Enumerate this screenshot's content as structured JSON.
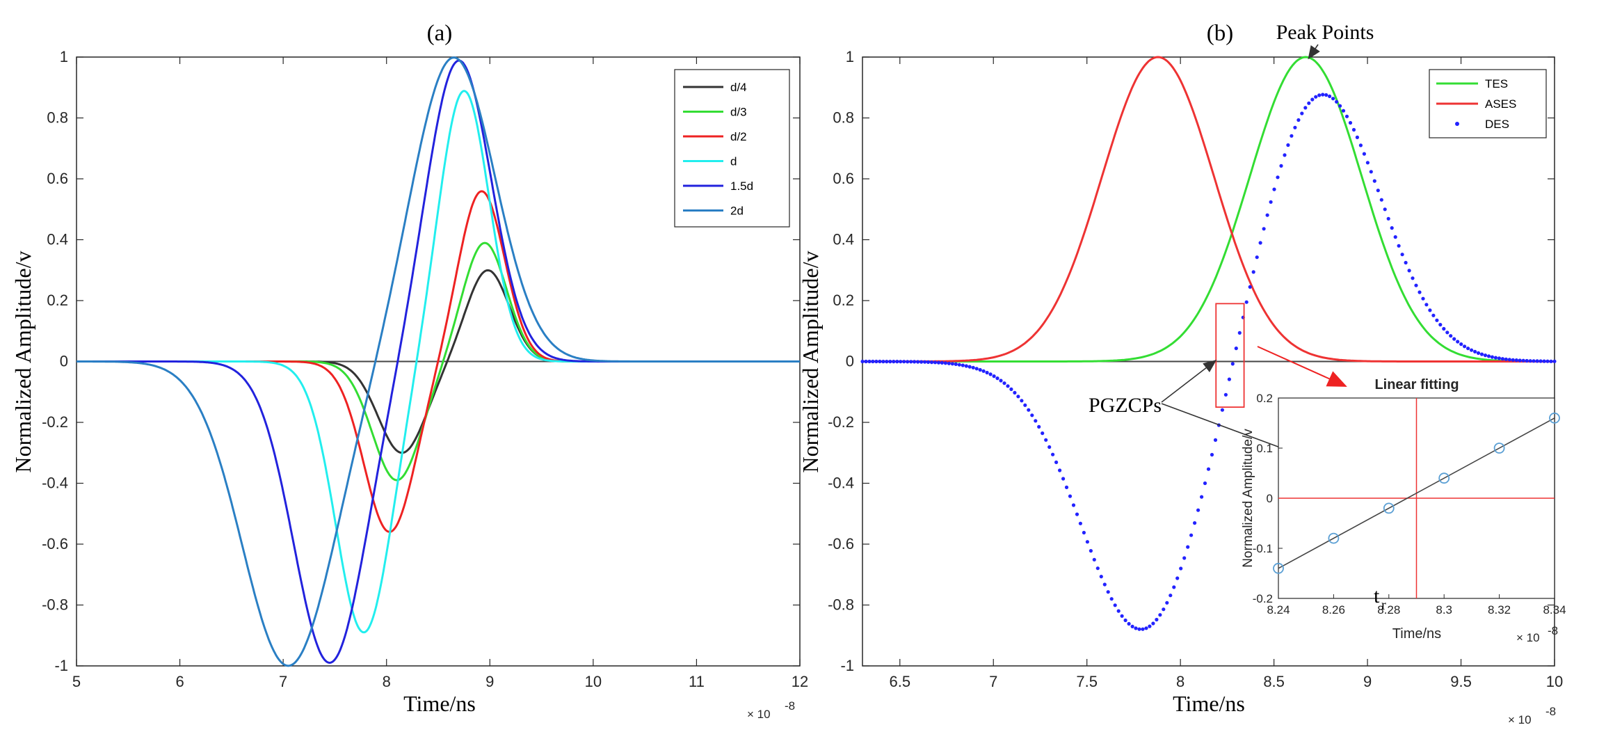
{
  "chart_data": [
    {
      "id": "a",
      "type": "line",
      "title": "(a)",
      "xlabel": "Time/ns",
      "ylabel": "Normalized Amplitude/v",
      "x_exponent": "× 10",
      "x_exponent_power": "-8",
      "xlim": [
        5,
        12
      ],
      "ylim": [
        -1,
        1
      ],
      "xticks": [
        "5",
        "6",
        "7",
        "8",
        "9",
        "10",
        "11",
        "12"
      ],
      "yticks": [
        "-1",
        "-0.8",
        "-0.6",
        "-0.4",
        "-0.2",
        "0",
        "0.2",
        "0.4",
        "0.6",
        "0.8",
        "1"
      ],
      "legend_position": "top-right",
      "series": [
        {
          "name": "d/4",
          "color": "#333333",
          "min_point": [
            8.15,
            -0.3
          ],
          "max_point": [
            8.98,
            0.3
          ]
        },
        {
          "name": "d/3",
          "color": "#33dd33",
          "min_point": [
            8.1,
            -0.39
          ],
          "max_point": [
            8.95,
            0.39
          ]
        },
        {
          "name": "d/2",
          "color": "#ee2222",
          "min_point": [
            8.03,
            -0.56
          ],
          "max_point": [
            8.92,
            0.56
          ]
        },
        {
          "name": "d",
          "color": "#22eeee",
          "min_point": [
            7.78,
            -0.89
          ],
          "max_point": [
            8.75,
            0.89
          ]
        },
        {
          "name": "1.5d",
          "color": "#2222dd",
          "min_point": [
            7.45,
            -0.99
          ],
          "max_point": [
            8.7,
            0.99
          ]
        },
        {
          "name": "2d",
          "color": "#2a7fc4",
          "min_point": [
            7.05,
            -1.0
          ],
          "max_point": [
            8.65,
            1.0
          ]
        }
      ]
    },
    {
      "id": "b",
      "type": "line",
      "title": "(b)",
      "xlabel": "Time/ns",
      "ylabel": "Normalized Amplitude/v",
      "x_exponent": "× 10",
      "x_exponent_power": "-8",
      "xlim": [
        6.3,
        10
      ],
      "ylim": [
        -1,
        1
      ],
      "xticks": [
        "6.5",
        "7",
        "7.5",
        "8",
        "8.5",
        "9",
        "9.5",
        "10"
      ],
      "yticks": [
        "-1",
        "-0.8",
        "-0.6",
        "-0.4",
        "-0.2",
        "0",
        "0.2",
        "0.4",
        "0.6",
        "0.8",
        "1"
      ],
      "legend_position": "top-right",
      "series": [
        {
          "name": "TES",
          "color": "#33dd33",
          "style": "line",
          "peak": [
            8.67,
            1.0
          ]
        },
        {
          "name": "ASES",
          "color": "#ee3333",
          "style": "line",
          "peak": [
            7.88,
            1.0
          ]
        },
        {
          "name": "DES",
          "color": "#2222ff",
          "style": "dots",
          "min_point": [
            7.8,
            -0.89
          ],
          "max_point": [
            8.75,
            0.89
          ]
        }
      ],
      "annotations": {
        "peak_points": "Peak Points",
        "pgzcps": "PGZCPs",
        "linear_fitting": "Linear fitting"
      },
      "inset": {
        "title": "Linear fitting",
        "xlabel": "Time/ns",
        "ylabel": "Normalized Amplitude/v",
        "x_exponent": "× 10",
        "x_exponent_power": "-8",
        "xlim": [
          8.24,
          8.34
        ],
        "ylim": [
          -0.2,
          0.2
        ],
        "xticks": [
          "8.24",
          "8.26",
          "8.28",
          "8.3",
          "8.32",
          "8.34"
        ],
        "yticks": [
          "-0.2",
          "-0.1",
          "0",
          "0.1",
          "0.2"
        ],
        "tr_label": "t",
        "tr_subscript": "r",
        "tr_value": 8.29,
        "points_x": [
          8.24,
          8.26,
          8.28,
          8.3,
          8.32,
          8.34
        ],
        "points_y": [
          -0.14,
          -0.08,
          -0.02,
          0.04,
          0.1,
          0.16
        ]
      }
    }
  ]
}
